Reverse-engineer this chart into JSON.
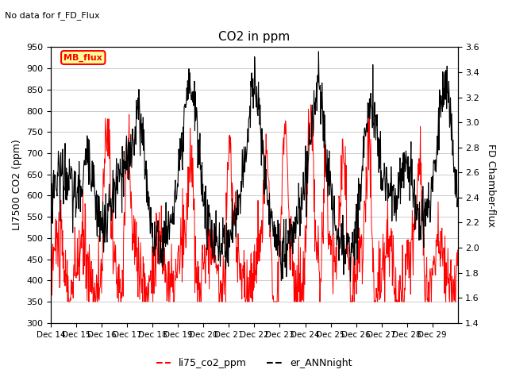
{
  "title": "CO2 in ppm",
  "subtitle": "No data for f_FD_Flux",
  "ylabel_left": "LI7500 CO2 (ppm)",
  "ylabel_right": "FD Chamber-flux",
  "ylim_left": [
    300,
    950
  ],
  "ylim_right": [
    1.4,
    3.6
  ],
  "yticks_left": [
    300,
    350,
    400,
    450,
    500,
    550,
    600,
    650,
    700,
    750,
    800,
    850,
    900,
    950
  ],
  "yticks_right": [
    1.4,
    1.6,
    1.8,
    2.0,
    2.2,
    2.4,
    2.6,
    2.8,
    3.0,
    3.2,
    3.4,
    3.6
  ],
  "xticklabels": [
    "Dec 14",
    "Dec 15",
    "Dec 16",
    "Dec 17",
    "Dec 18",
    "Dec 19",
    "Dec 20",
    "Dec 21",
    "Dec 22",
    "Dec 23",
    "Dec 24",
    "Dec 25",
    "Dec 26",
    "Dec 27",
    "Dec 28",
    "Dec 29"
  ],
  "legend_label_red": "li75_co2_ppm",
  "legend_label_black": "er_ANNnight",
  "legend_label_box": "MB_flux",
  "line_color_red": "#ff0000",
  "line_color_black": "#000000",
  "box_fill": "#ffff99",
  "box_edge": "#ff0000",
  "background_color": "#ffffff",
  "grid_color": "#cccccc"
}
